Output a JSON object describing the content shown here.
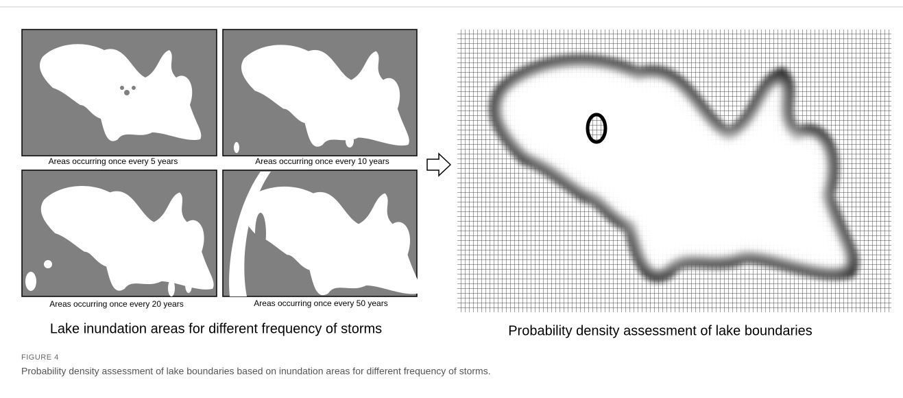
{
  "figure": {
    "panels": [
      {
        "caption": "Areas occurring once every 5 years"
      },
      {
        "caption": "Areas occurring once every 10 years"
      },
      {
        "caption": "Areas occurring once every 20 years"
      },
      {
        "caption": "Areas occurring once every 50 years"
      }
    ],
    "left_label": "Lake inundation areas for different frequency of storms",
    "right_label": "Probability density assessment of lake boundaries",
    "label": "FIGURE 4",
    "caption": "Probability density assessment of lake boundaries based on inundation areas for different frequency of storms."
  }
}
